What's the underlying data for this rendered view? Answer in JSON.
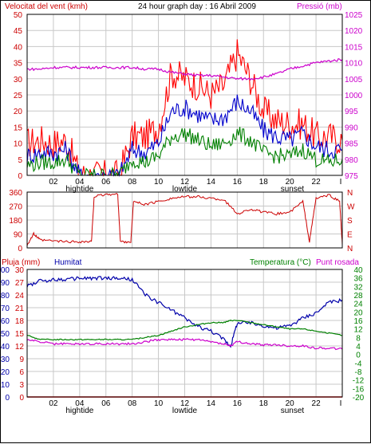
{
  "header": {
    "left_label": "Velocitat del vent (kmh)",
    "center_label": "24 hour graph day : 16 Abril 2009",
    "right_label": "Pressió (mb)"
  },
  "panel2_right_label": "N\nW\nS\nE\nN",
  "panel3_header": {
    "rain_label": "Pluja (mm)",
    "humidity_label": "Humitat",
    "temp_label": "Temperatura (°C)",
    "dew_label": "Punt rosada"
  },
  "x_ticks": [
    "02",
    "04",
    "06",
    "08",
    "10",
    "12",
    "14",
    "16",
    "18",
    "20",
    "22"
  ],
  "x_events": [
    "hightide",
    "lowtide",
    "sunset"
  ],
  "colors": {
    "wind_gust": "#ff0000",
    "wind_avg": "#0000cc",
    "wind_min": "#008000",
    "pressure": "#cc00cc",
    "direction": "#cc0000",
    "humidity": "#0000aa",
    "temperature": "#008000",
    "dew_point": "#cc00cc",
    "rain": "#ff0000",
    "grid": "#c8c8c8"
  },
  "chart_data": [
    {
      "type": "line",
      "title": "24 hour graph day : 16 Abril 2009",
      "ylabel": "Velocitat del vent (kmh)",
      "ylabel_right": "Pressió (mb)",
      "ylim": [
        0,
        50
      ],
      "ylim_right": [
        975,
        1025
      ],
      "y_ticks": [
        0,
        5,
        10,
        15,
        20,
        25,
        30,
        35,
        40,
        45,
        50
      ],
      "y_ticks_right": [
        975,
        980,
        985,
        990,
        995,
        1000,
        1005,
        1010,
        1015,
        1020,
        1025
      ],
      "x": [
        0,
        1,
        2,
        3,
        4,
        5,
        6,
        7,
        8,
        9,
        10,
        11,
        12,
        13,
        14,
        15,
        16,
        17,
        18,
        19,
        20,
        21,
        22,
        23,
        24
      ],
      "series": [
        {
          "key": "gust",
          "values": [
            10,
            11,
            10,
            11,
            0,
            0,
            0,
            0,
            12,
            12,
            15,
            32,
            30,
            28,
            25,
            28,
            38,
            30,
            20,
            17,
            16,
            16,
            12,
            12,
            11
          ]
        },
        {
          "key": "avg",
          "values": [
            6,
            7,
            7,
            8,
            0,
            0,
            0,
            0,
            8,
            7,
            10,
            20,
            21,
            19,
            17,
            18,
            23,
            20,
            14,
            12,
            11,
            13,
            9,
            8,
            8
          ]
        },
        {
          "key": "min",
          "values": [
            3,
            4,
            4,
            5,
            0,
            0,
            0,
            0,
            5,
            4,
            6,
            12,
            13,
            11,
            9,
            10,
            13,
            11,
            7,
            6,
            6,
            8,
            5,
            4,
            5
          ]
        },
        {
          "key": "pressure",
          "axis": "right",
          "values": [
            1008,
            1008,
            1008.5,
            1008.5,
            1008.5,
            1008.5,
            1008.5,
            1008.5,
            1008.5,
            1008,
            1008,
            1007,
            1006.5,
            1006,
            1006,
            1005.5,
            1005,
            1005,
            1005.5,
            1006.5,
            1008,
            1009,
            1010,
            1010.5,
            1011
          ]
        }
      ]
    },
    {
      "type": "line",
      "ylim": [
        0,
        360
      ],
      "y_ticks": [
        0,
        90,
        180,
        270,
        360
      ],
      "x": [
        0,
        0.5,
        1,
        2,
        3,
        4,
        4.9,
        5.1,
        6,
        6.9,
        7.1,
        7.9,
        8.1,
        9,
        10,
        11,
        12,
        13,
        14,
        15,
        16,
        17,
        18,
        19,
        20,
        21,
        21.5,
        22,
        23,
        23.8,
        24
      ],
      "series": [
        {
          "key": "direction",
          "values": [
            20,
            90,
            50,
            45,
            40,
            40,
            40,
            330,
            345,
            345,
            40,
            40,
            300,
            280,
            300,
            320,
            330,
            330,
            320,
            310,
            220,
            250,
            230,
            220,
            230,
            300,
            40,
            320,
            340,
            300,
            20
          ]
        }
      ]
    },
    {
      "type": "line",
      "ylabel": "Pluja (mm)",
      "ylabel_right": "Temperatura (°C)",
      "ylim_rain": [
        0,
        30
      ],
      "ylim_humidity": [
        0,
        100
      ],
      "ylim_temp": [
        -20,
        40
      ],
      "y_ticks_rain": [
        0,
        3,
        6,
        9,
        12,
        15,
        18,
        21,
        24,
        27,
        30
      ],
      "y_ticks_humidity": [
        0,
        10,
        20,
        30,
        40,
        50,
        60,
        70,
        80,
        90,
        100
      ],
      "y_ticks_temp": [
        -20,
        -16,
        -12,
        -8,
        -4,
        0,
        4,
        8,
        12,
        16,
        20,
        24,
        28,
        32,
        36,
        40
      ],
      "x": [
        0,
        1,
        2,
        3,
        4,
        5,
        6,
        7,
        8,
        9,
        10,
        11,
        12,
        13,
        14,
        15,
        15.5,
        16,
        17,
        18,
        19,
        20,
        21,
        22,
        23,
        24
      ],
      "series": [
        {
          "key": "humidity",
          "axis": "humidity",
          "values": [
            87,
            91,
            92,
            92,
            93,
            93,
            93,
            93,
            92,
            80,
            74,
            68,
            62,
            55,
            52,
            45,
            40,
            58,
            58,
            56,
            54,
            56,
            62,
            66,
            74,
            76
          ]
        },
        {
          "key": "temperature",
          "axis": "temp",
          "values": [
            9,
            7,
            7,
            7,
            7,
            7,
            7,
            7,
            7,
            8,
            9,
            11,
            13,
            14,
            15,
            15,
            16,
            16,
            15,
            14,
            13,
            12,
            12,
            11,
            10,
            9
          ]
        },
        {
          "key": "dew_point",
          "axis": "temp",
          "values": [
            7,
            6,
            5,
            5,
            5,
            5,
            5,
            5,
            5,
            6,
            7,
            7,
            7,
            7,
            6,
            5,
            4,
            6,
            5,
            4.5,
            4.5,
            4,
            4,
            3,
            3,
            2.5
          ]
        },
        {
          "key": "rain",
          "axis": "rain",
          "values": [
            0,
            0,
            0,
            0,
            0,
            0,
            0,
            0,
            0,
            0,
            0,
            0,
            0,
            0,
            0,
            0,
            0,
            0,
            0,
            0,
            0,
            0,
            0,
            0,
            0,
            0
          ]
        }
      ]
    }
  ]
}
